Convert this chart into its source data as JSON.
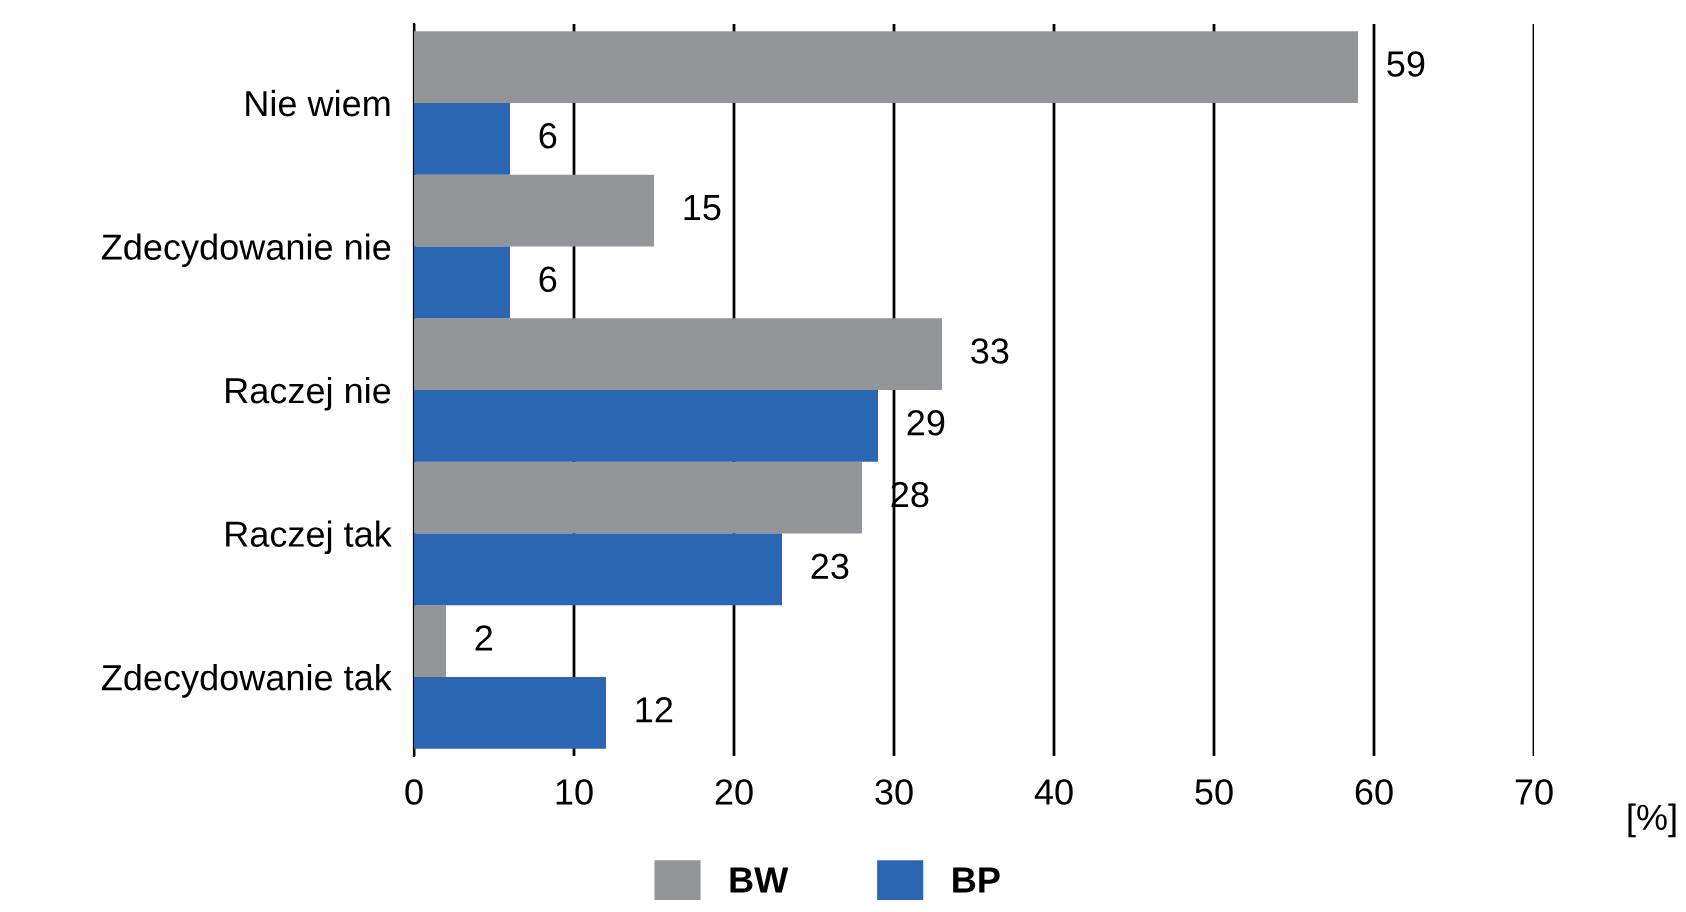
{
  "chart_data": {
    "type": "bar",
    "orientation": "horizontal",
    "categories": [
      "Nie wiem",
      "Zdecydowanie nie",
      "Raczej nie",
      "Raczej tak",
      "Zdecydowanie tak"
    ],
    "series": [
      {
        "name": "BW",
        "color": "#939598",
        "values": [
          59,
          15,
          33,
          28,
          2
        ]
      },
      {
        "name": "BP",
        "color": "#2a66b1",
        "values": [
          6,
          6,
          29,
          23,
          12
        ]
      }
    ],
    "xlabel": "[%]",
    "xlim": [
      0,
      70
    ],
    "xticks": [
      0,
      10,
      20,
      30,
      40,
      50,
      60,
      70
    ],
    "grid": "x",
    "legend": "bottom",
    "data_labels": true
  }
}
